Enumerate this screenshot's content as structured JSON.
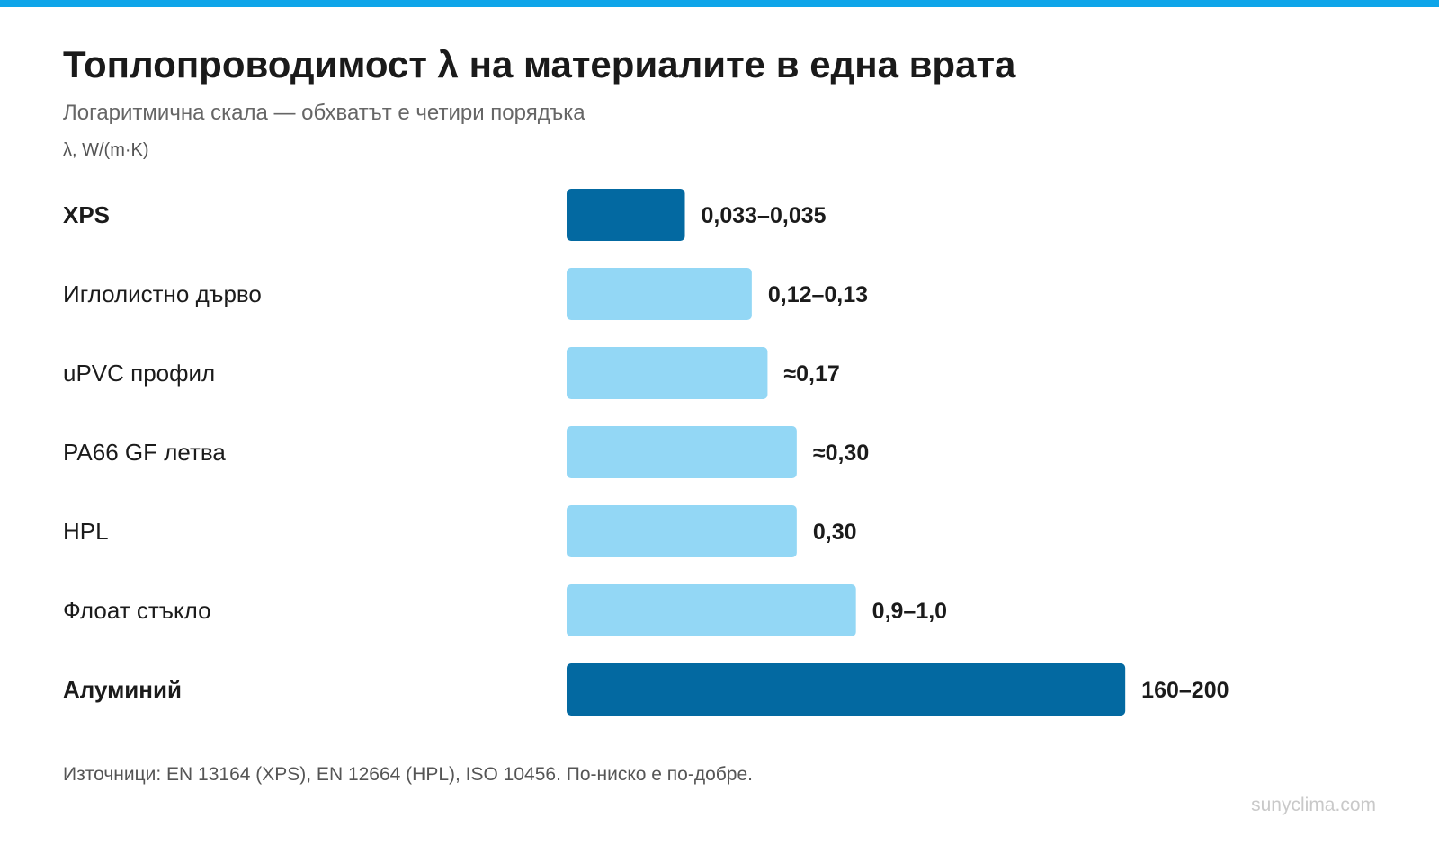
{
  "title": "Топлопроводимост λ на материалите в една врата",
  "subtitle": "Логаритмична скала — обхватът е четири порядъка",
  "unit_label": "λ, W/(m·K)",
  "footer": "Източници: EN 13164 (XPS), EN 12664 (HPL), ISO 10456. По-ниско е по-добре.",
  "watermark": "sunyclima.com",
  "colors": {
    "accent_bar": "#0ea5e9",
    "highlight": "#0369a1",
    "normal": "#93d7f5"
  },
  "chart_data": {
    "type": "bar",
    "orientation": "horizontal",
    "scale": "log",
    "xlabel": "λ, W/(m·K)",
    "categories": [
      "XPS",
      "Иглолистно дърво",
      "uPVC профил",
      "PA66 GF летва",
      "HPL",
      "Флоат стъкло",
      "Алуминий"
    ],
    "values": [
      0.034,
      0.125,
      0.17,
      0.3,
      0.3,
      0.95,
      180
    ],
    "value_labels": [
      "0,033–0,035",
      "0,12–0,13",
      "≈0,17",
      "≈0,30",
      "0,30",
      "0,9–1,0",
      "160–200"
    ],
    "highlighted": [
      true,
      false,
      false,
      false,
      false,
      false,
      true
    ],
    "grid": false,
    "axis_ticks_visible": false
  }
}
